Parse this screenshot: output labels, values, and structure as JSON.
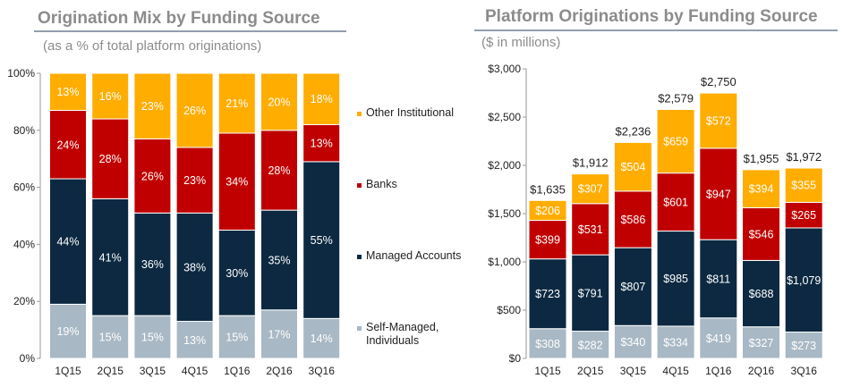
{
  "colors": {
    "other_institutional": "#FFAD00",
    "banks": "#C00000",
    "managed_accounts": "#0C2941",
    "self_managed": "#A8B8C4"
  },
  "chart_data": [
    {
      "type": "bar",
      "stacked": true,
      "title": "Origination Mix by Funding Source",
      "subtitle": "(as a % of total platform originations)",
      "categories": [
        "1Q15",
        "2Q15",
        "3Q15",
        "4Q15",
        "1Q16",
        "2Q16",
        "3Q16"
      ],
      "ylim": [
        0,
        100
      ],
      "yticks": [
        "0%",
        "20%",
        "40%",
        "60%",
        "80%",
        "100%"
      ],
      "legend_position": "right",
      "series": [
        {
          "name": "Self-Managed, Individuals",
          "key": "self_managed",
          "values": [
            19,
            15,
            15,
            13,
            15,
            17,
            14
          ]
        },
        {
          "name": "Managed Accounts",
          "key": "managed_accounts",
          "values": [
            44,
            41,
            36,
            38,
            30,
            35,
            55
          ]
        },
        {
          "name": "Banks",
          "key": "banks",
          "values": [
            24,
            28,
            26,
            23,
            34,
            28,
            13
          ]
        },
        {
          "name": "Other Institutional",
          "key": "other_institutional",
          "values": [
            13,
            16,
            23,
            26,
            21,
            20,
            18
          ]
        }
      ],
      "label_format": "{v}%"
    },
    {
      "type": "bar",
      "stacked": true,
      "title": "Platform Originations by Funding Source",
      "subtitle": "($ in millions)",
      "categories": [
        "1Q15",
        "2Q15",
        "3Q15",
        "4Q15",
        "1Q16",
        "2Q16",
        "3Q16"
      ],
      "ylim": [
        0,
        3000
      ],
      "yticks": [
        "$0",
        "$500",
        "$1,000",
        "$1,500",
        "$2,000",
        "$2,500",
        "$3,000"
      ],
      "totals": [
        "$1,635",
        "$1,912",
        "$2,236",
        "$2,579",
        "$2,750",
        "$1,955",
        "$1,972"
      ],
      "series": [
        {
          "key": "self_managed",
          "values": [
            308,
            282,
            340,
            334,
            419,
            327,
            273
          ]
        },
        {
          "key": "managed_accounts",
          "values": [
            723,
            791,
            807,
            985,
            811,
            688,
            1079
          ]
        },
        {
          "key": "banks",
          "values": [
            399,
            531,
            586,
            601,
            947,
            546,
            265
          ]
        },
        {
          "key": "other_institutional",
          "values": [
            206,
            307,
            504,
            659,
            572,
            394,
            355
          ]
        }
      ],
      "label_format": "${v}"
    }
  ]
}
